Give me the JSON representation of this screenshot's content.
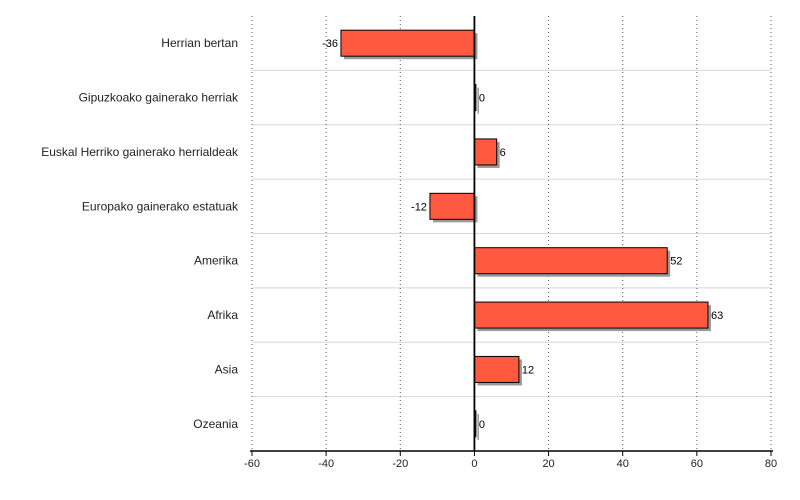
{
  "chart_data": {
    "type": "bar",
    "orientation": "horizontal",
    "categories": [
      "Herrian bertan",
      "Gipuzkoako gainerako herriak",
      "Euskal Herriko gainerako herrialdeak",
      "Europako gainerako estatuak",
      "Amerika",
      "Afrika",
      "Asia",
      "Ozeania"
    ],
    "values": [
      -36,
      0,
      6,
      -12,
      52,
      63,
      12,
      0
    ],
    "data_labels": [
      "-36",
      "0",
      "6",
      "-12",
      "52",
      "63",
      "12",
      "0"
    ],
    "xlim": [
      -60,
      80
    ],
    "xticks": [
      -60,
      -40,
      -20,
      0,
      20,
      40,
      60,
      80
    ],
    "xtick_labels": [
      "-60",
      "-40",
      "-20",
      "0",
      "20",
      "40",
      "60",
      "80"
    ],
    "title": "",
    "xlabel": "",
    "ylabel": "",
    "grid": true,
    "bar_color": "#ff5a40",
    "bar_edge_color": "#000000",
    "shadow_color": "#999999"
  }
}
